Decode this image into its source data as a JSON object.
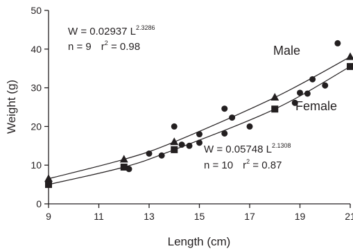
{
  "chart_data": {
    "type": "scatter",
    "xlabel": "Length (cm)",
    "ylabel": "Weight (g)",
    "xlim": [
      9,
      21
    ],
    "ylim": [
      0,
      50
    ],
    "x_ticks": [
      9,
      11,
      13,
      15,
      17,
      19,
      21
    ],
    "y_ticks": [
      0,
      10,
      20,
      30,
      40,
      50
    ],
    "grid": false,
    "legend": "none",
    "series": [
      {
        "name": "Male",
        "marker": "triangle",
        "points": [
          [
            9,
            6.5
          ],
          [
            12,
            11.5
          ],
          [
            14,
            16
          ],
          [
            18,
            27.5
          ],
          [
            21,
            38
          ]
        ],
        "fit": {
          "a": 0.02937,
          "b": 2.3286
        },
        "equation": {
          "prefix": "W = 0.02937 L",
          "exponent": "2.3286",
          "stats": "n = 9",
          "r2_prefix": "r",
          "r2_exp": "2",
          "r2_value": " = 0.98"
        }
      },
      {
        "name": "Female",
        "marker": "square",
        "points": [
          [
            9,
            5
          ],
          [
            12,
            9.5
          ],
          [
            14,
            14
          ],
          [
            18,
            24.5
          ],
          [
            21,
            35.5
          ]
        ],
        "fit": {
          "a": 0.05748,
          "b": 2.1308
        },
        "equation": {
          "prefix": "W = 0.05748 L",
          "exponent": "2.1308",
          "stats": "n = 10",
          "r2_prefix": "r",
          "r2_exp": "2",
          "r2_value": " = 0.87"
        }
      },
      {
        "name": "",
        "marker": "circle",
        "points": [
          [
            12.2,
            9
          ],
          [
            13,
            13
          ],
          [
            13.5,
            12.5
          ],
          [
            14,
            20
          ],
          [
            14.3,
            15.3
          ],
          [
            14.6,
            15
          ],
          [
            15,
            15.8
          ],
          [
            15,
            18
          ],
          [
            16,
            24.6
          ],
          [
            16,
            18.2
          ],
          [
            16.3,
            22.3
          ],
          [
            17,
            20
          ],
          [
            18.8,
            26.1
          ],
          [
            19,
            28.7
          ],
          [
            19.3,
            28.5
          ],
          [
            19.5,
            32.2
          ],
          [
            20,
            30.6
          ],
          [
            20.5,
            41.5
          ]
        ]
      }
    ]
  }
}
